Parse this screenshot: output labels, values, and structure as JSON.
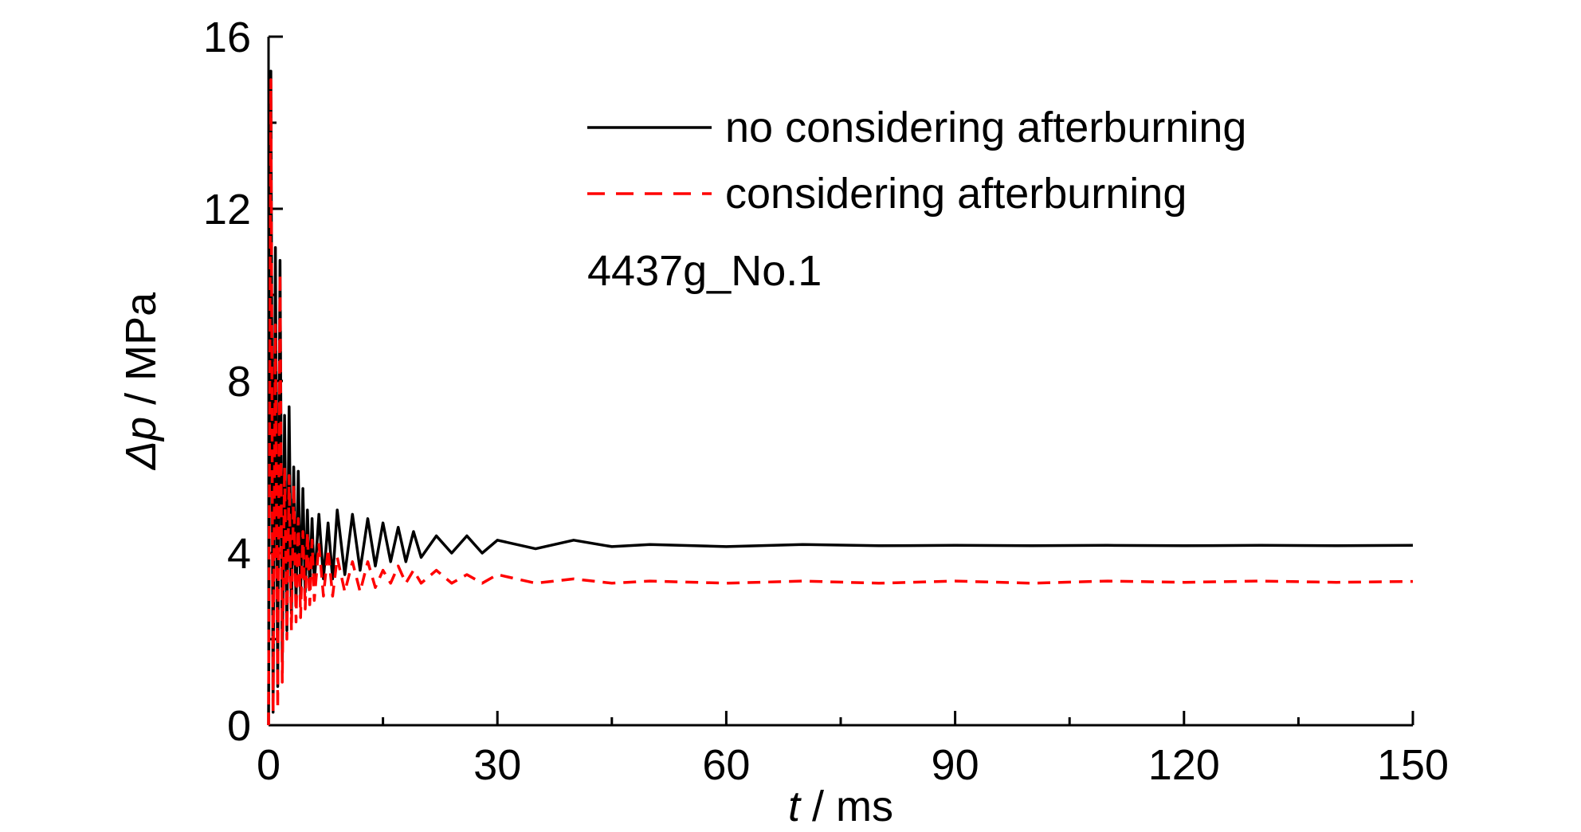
{
  "chart_data": {
    "type": "line",
    "title": "",
    "xlabel": "t / ms",
    "xlabel_var": "t",
    "xlabel_unit": " / ms",
    "ylabel": "Δp / MPa",
    "ylabel_var": "Δp",
    "ylabel_unit": " / MPa",
    "xlim": [
      0,
      150
    ],
    "ylim": [
      0,
      16
    ],
    "xticks": [
      0,
      30,
      60,
      90,
      120,
      150
    ],
    "yticks": [
      0,
      4,
      8,
      12,
      16
    ],
    "xtick_labels": [
      "0",
      "30",
      "60",
      "90",
      "120",
      "150"
    ],
    "ytick_labels": [
      "0",
      "4",
      "8",
      "12",
      "16"
    ],
    "grid": false,
    "legend_position": "top-right",
    "annotation": "4437g_No.1",
    "series": [
      {
        "name": "no considering afterburning",
        "color": "#000000",
        "dash": "solid",
        "x": [
          0,
          0.3,
          0.6,
          0.9,
          1.2,
          1.5,
          1.8,
          2.1,
          2.4,
          2.7,
          3.0,
          3.3,
          3.6,
          3.9,
          4.2,
          4.5,
          4.8,
          5.1,
          5.4,
          5.7,
          6.0,
          6.6,
          7.2,
          7.8,
          8.4,
          9.0,
          10,
          11,
          12,
          13,
          14,
          15,
          16,
          17,
          18,
          19,
          20,
          22,
          24,
          26,
          28,
          30,
          35,
          40,
          45,
          50,
          60,
          70,
          80,
          90,
          100,
          110,
          120,
          130,
          140,
          150
        ],
        "y": [
          0,
          15.2,
          0.3,
          11.1,
          0.9,
          10.8,
          1.5,
          7.2,
          2.2,
          7.4,
          2.6,
          6.0,
          2.8,
          5.9,
          3.0,
          5.5,
          3.1,
          5.0,
          3.2,
          4.8,
          3.3,
          4.9,
          3.4,
          4.7,
          3.4,
          5.0,
          3.5,
          4.9,
          3.6,
          4.8,
          3.7,
          4.7,
          3.8,
          4.6,
          3.8,
          4.5,
          3.9,
          4.4,
          4.0,
          4.4,
          4.0,
          4.3,
          4.1,
          4.3,
          4.15,
          4.2,
          4.15,
          4.2,
          4.17,
          4.18,
          4.17,
          4.18,
          4.17,
          4.18,
          4.17,
          4.18
        ]
      },
      {
        "name": "considering afterburning",
        "color": "#ff0000",
        "dash": "dashed",
        "x": [
          0,
          0.3,
          0.6,
          0.9,
          1.2,
          1.5,
          1.8,
          2.1,
          2.4,
          2.7,
          3.0,
          3.3,
          3.6,
          3.9,
          4.2,
          4.5,
          4.8,
          5.1,
          5.4,
          5.7,
          6.0,
          6.6,
          7.2,
          7.8,
          8.4,
          9.0,
          10,
          11,
          12,
          13,
          14,
          15,
          16,
          17,
          18,
          19,
          20,
          22,
          24,
          26,
          28,
          30,
          35,
          40,
          45,
          50,
          60,
          70,
          80,
          90,
          100,
          110,
          120,
          130,
          140,
          150
        ],
        "y": [
          0,
          15.0,
          0.3,
          9.3,
          0.4,
          10.5,
          1.0,
          6.0,
          2.0,
          5.8,
          2.2,
          5.6,
          2.4,
          4.8,
          2.5,
          4.5,
          2.7,
          4.5,
          2.8,
          4.3,
          2.9,
          4.2,
          3.0,
          4.1,
          3.0,
          3.9,
          3.1,
          3.8,
          3.1,
          3.8,
          3.2,
          3.6,
          3.3,
          3.7,
          3.3,
          3.6,
          3.3,
          3.6,
          3.3,
          3.5,
          3.3,
          3.5,
          3.3,
          3.4,
          3.3,
          3.35,
          3.3,
          3.35,
          3.3,
          3.35,
          3.3,
          3.35,
          3.32,
          3.35,
          3.32,
          3.34
        ]
      }
    ]
  }
}
